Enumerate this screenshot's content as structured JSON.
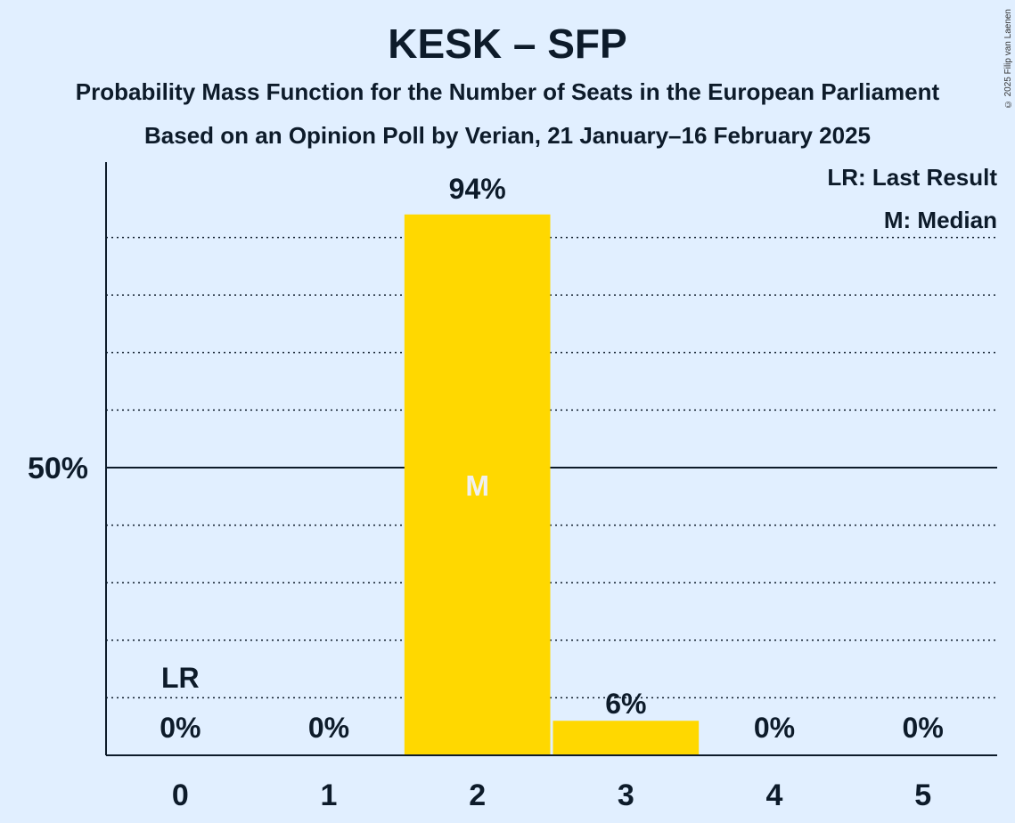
{
  "chart_data": {
    "type": "bar",
    "title": "KESK – SFP",
    "subtitle_lines": [
      "Probability Mass Function for the Number of Seats in the European Parliament",
      "Based on an Opinion Poll by Verian, 21 January–16 February 2025"
    ],
    "copyright": "© 2025 Filip van Laenen",
    "categories": [
      "0",
      "1",
      "2",
      "3",
      "4",
      "5"
    ],
    "values": [
      0,
      0,
      94,
      6,
      0,
      0
    ],
    "value_labels": [
      "0%",
      "0%",
      "94%",
      "6%",
      "0%",
      "0%"
    ],
    "ylim": [
      0,
      100
    ],
    "y_ticks": [
      {
        "value": 50,
        "label": "50%"
      }
    ],
    "dotted_gridlines": [
      10,
      20,
      30,
      40,
      60,
      70,
      80,
      90
    ],
    "last_result_index": 0,
    "last_result_marker": "LR",
    "median_index": 2,
    "median_marker": "M",
    "legend": {
      "placement": "top-right",
      "entries": [
        "LR: Last Result",
        "M: Median"
      ]
    },
    "colors": {
      "bar": "#ffd800",
      "background": "#e1efff",
      "text": "#0d1b2a",
      "median_text": "#f0f0f0"
    }
  }
}
